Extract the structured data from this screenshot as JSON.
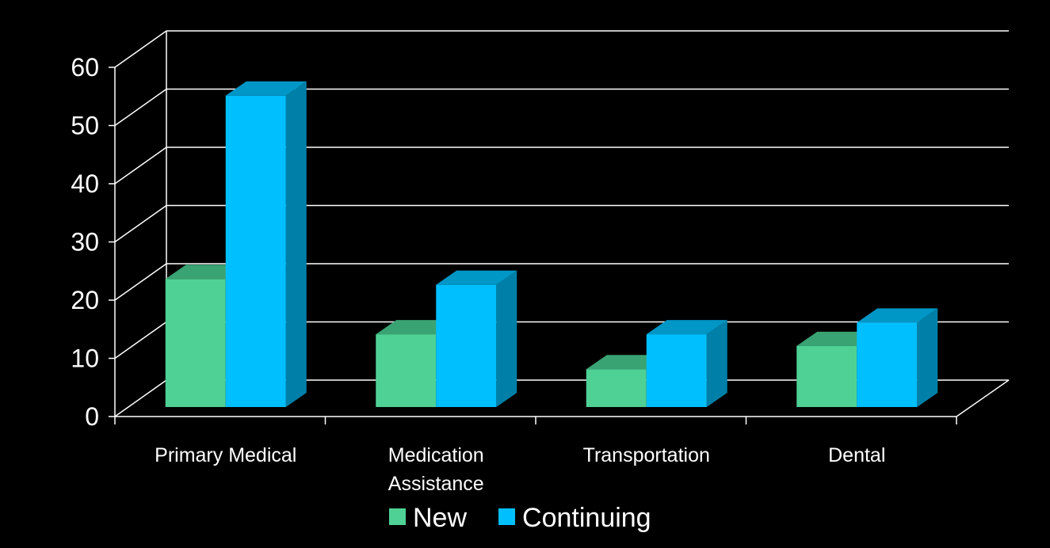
{
  "chart_data": {
    "type": "bar",
    "categories": [
      [
        "Primary Medical"
      ],
      [
        "Medication",
        "Assistance"
      ],
      [
        "Transportation"
      ],
      [
        "Dental"
      ]
    ],
    "series": [
      {
        "name": "New",
        "values": [
          22,
          12.5,
          6.5,
          10.5
        ],
        "color": "#4fd195",
        "top_color": "#3aa373"
      },
      {
        "name": "Continuing",
        "values": [
          53.5,
          21,
          12.5,
          14.5
        ],
        "color": "#00bfff",
        "side_color": "#0080a8",
        "top_color": "#0096c6"
      }
    ],
    "ylim": [
      0,
      60
    ],
    "yticks": [
      "0",
      "10",
      "20",
      "30",
      "40",
      "50",
      "60"
    ],
    "grid": true,
    "legend_position": "bottom"
  }
}
